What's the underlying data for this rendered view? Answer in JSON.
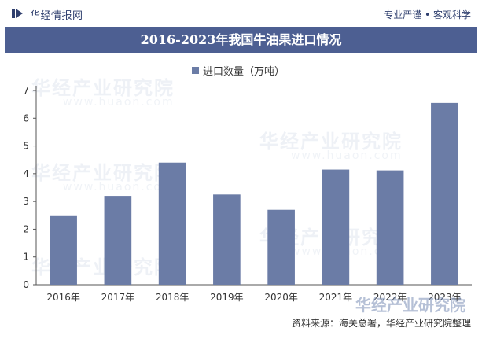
{
  "header": {
    "brand": "华经情报网",
    "slogan": "专业严谨 • 客观科学",
    "title": "2016-2023年我国牛油果进口情况"
  },
  "footer": {
    "source": "资料来源：海关总署，华经产业研究院整理"
  },
  "watermark": {
    "text": "华经产业研究院",
    "url": "www.huaon.com"
  },
  "colors": {
    "bar": "#6b7ca6",
    "title_bg": "#4d5f92",
    "brand": "#2f3f6e"
  },
  "chart_data": {
    "type": "bar",
    "title": "2016-2023年我国牛油果进口情况",
    "categories": [
      "2016年",
      "2017年",
      "2018年",
      "2019年",
      "2020年",
      "2021年",
      "2022年",
      "2023年"
    ],
    "series": [
      {
        "name": "进口数量（万吨）",
        "values": [
          2.5,
          3.2,
          4.4,
          3.25,
          2.7,
          4.15,
          4.12,
          6.55
        ]
      }
    ],
    "yticks": [
      "0",
      "1",
      "2",
      "3",
      "4",
      "5",
      "6",
      "7"
    ],
    "ylim": [
      0,
      7
    ],
    "xlabel": "",
    "ylabel": "",
    "legend": "top-center",
    "grid": false
  }
}
